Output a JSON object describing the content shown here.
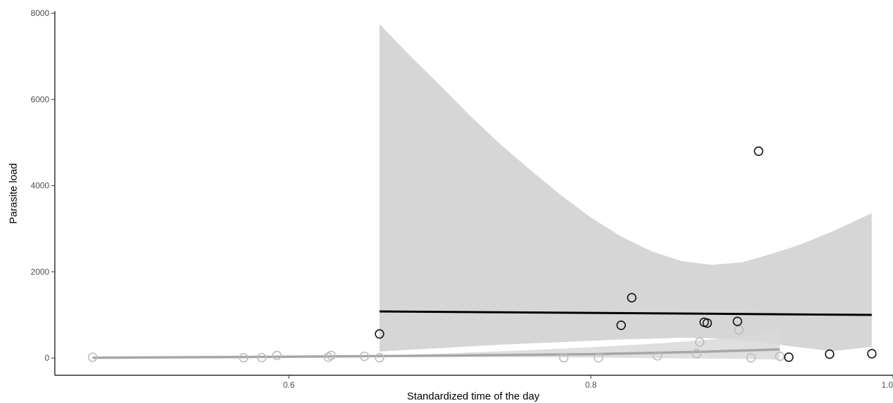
{
  "chart_data": {
    "type": "scatter",
    "title": "",
    "xlabel": "Standardized time of the day",
    "ylabel": "Parasite load",
    "xlim": [
      0.445,
      1.0
    ],
    "ylim": [
      -400,
      8050
    ],
    "x_ticks": [
      0.6,
      0.8,
      1.0
    ],
    "x_tick_labels": [
      "0.6",
      "0.8",
      "1.0"
    ],
    "y_ticks": [
      0,
      2000,
      4000,
      6000,
      8000
    ],
    "y_tick_labels": [
      "0",
      "2000",
      "4000",
      "6000",
      "8000"
    ],
    "grid": false,
    "legend": "none",
    "series": [
      {
        "color": "#111111",
        "points": [
          {
            "x": 0.66,
            "y": 560
          },
          {
            "x": 0.82,
            "y": 760
          },
          {
            "x": 0.827,
            "y": 1400
          },
          {
            "x": 0.875,
            "y": 830
          },
          {
            "x": 0.877,
            "y": 810
          },
          {
            "x": 0.897,
            "y": 850
          },
          {
            "x": 0.911,
            "y": 4800
          },
          {
            "x": 0.931,
            "y": 20
          },
          {
            "x": 0.958,
            "y": 90
          },
          {
            "x": 0.986,
            "y": 100
          }
        ],
        "fit_line": [
          [
            0.66,
            1080
          ],
          [
            0.986,
            1000
          ]
        ],
        "ci_band": [
          [
            0.66,
            7750,
            150
          ],
          [
            0.68,
            7020,
            190
          ],
          [
            0.7,
            6330,
            230
          ],
          [
            0.72,
            5620,
            270
          ],
          [
            0.74,
            4960,
            310
          ],
          [
            0.76,
            4360,
            340
          ],
          [
            0.78,
            3780,
            370
          ],
          [
            0.8,
            3260,
            400
          ],
          [
            0.82,
            2820,
            430
          ],
          [
            0.84,
            2480,
            450
          ],
          [
            0.86,
            2250,
            470
          ],
          [
            0.88,
            2160,
            460
          ],
          [
            0.9,
            2220,
            410
          ],
          [
            0.92,
            2420,
            330
          ],
          [
            0.94,
            2650,
            240
          ],
          [
            0.96,
            2940,
            160
          ],
          [
            0.986,
            3360,
            260
          ]
        ]
      },
      {
        "color": "#bdbdbd",
        "points": [
          {
            "x": 0.47,
            "y": 20
          },
          {
            "x": 0.57,
            "y": 5
          },
          {
            "x": 0.582,
            "y": 10
          },
          {
            "x": 0.592,
            "y": 60
          },
          {
            "x": 0.626,
            "y": 20
          },
          {
            "x": 0.628,
            "y": 60
          },
          {
            "x": 0.65,
            "y": 40
          },
          {
            "x": 0.66,
            "y": 5
          },
          {
            "x": 0.782,
            "y": 5
          },
          {
            "x": 0.805,
            "y": 5
          },
          {
            "x": 0.844,
            "y": 50
          },
          {
            "x": 0.87,
            "y": 100
          },
          {
            "x": 0.872,
            "y": 370
          },
          {
            "x": 0.898,
            "y": 650
          },
          {
            "x": 0.906,
            "y": 5
          },
          {
            "x": 0.925,
            "y": 40
          }
        ],
        "fit_line": [
          [
            0.47,
            5
          ],
          [
            0.6,
            30
          ],
          [
            0.7,
            55
          ],
          [
            0.8,
            90
          ],
          [
            0.87,
            140
          ],
          [
            0.925,
            200
          ]
        ],
        "ci_band": [
          [
            0.47,
            30,
            -20
          ],
          [
            0.6,
            45,
            15
          ],
          [
            0.66,
            55,
            25
          ],
          [
            0.7,
            100,
            25
          ],
          [
            0.75,
            170,
            20
          ],
          [
            0.8,
            250,
            10
          ],
          [
            0.85,
            350,
            -5
          ],
          [
            0.9,
            490,
            -20
          ],
          [
            0.925,
            620,
            -40
          ]
        ]
      }
    ]
  }
}
